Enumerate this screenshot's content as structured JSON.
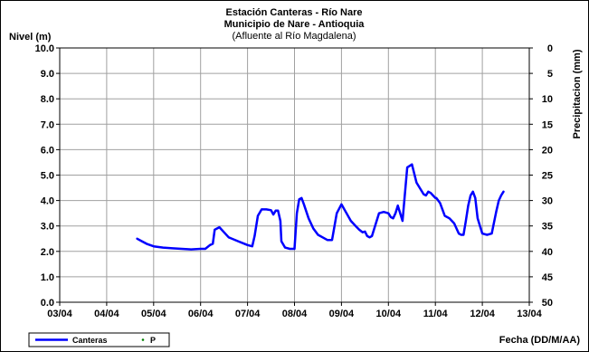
{
  "chart_data": {
    "type": "line",
    "title": [
      "Estación Canteras - Río Nare",
      "Municipio de Nare - Antioquia"
    ],
    "subtitle": "(Afluente al Río Magdalena)",
    "ylabel_left": "Nivel (m)",
    "ylabel_right": "Precipitacion (mm)",
    "xlabel": "Fecha (DD/M/AA)",
    "y_left_lim": [
      0,
      10
    ],
    "y_right_lim": [
      0,
      50
    ],
    "y_right_inverted": true,
    "y_left_ticks": [
      "0.0",
      "1.0",
      "2.0",
      "3.0",
      "4.0",
      "5.0",
      "6.0",
      "7.0",
      "8.0",
      "9.0",
      "10.0"
    ],
    "y_right_ticks": [
      "0",
      "5",
      "10",
      "15",
      "20",
      "25",
      "30",
      "35",
      "40",
      "45",
      "50"
    ],
    "x_ticks": [
      "03/04",
      "04/04",
      "05/04",
      "06/04",
      "07/04",
      "08/04",
      "09/04",
      "10/04",
      "11/04",
      "12/04",
      "13/04"
    ],
    "grid": true,
    "legend_position": "bottom-left",
    "series": [
      {
        "name": "Canteras",
        "color": "#0000ff",
        "x_month_index": [
          1.65,
          1.75,
          1.85,
          2.0,
          2.2,
          2.4,
          2.6,
          2.8,
          3.0,
          3.1,
          3.2,
          3.26,
          3.3,
          3.4,
          3.5,
          3.6,
          3.8,
          4.0,
          4.1,
          4.15,
          4.22,
          4.3,
          4.4,
          4.5,
          4.55,
          4.6,
          4.65,
          4.7,
          4.72,
          4.8,
          4.9,
          5.0,
          5.05,
          5.1,
          5.15,
          5.2,
          5.3,
          5.4,
          5.5,
          5.6,
          5.7,
          5.8,
          5.9,
          6.0,
          6.2,
          6.3,
          6.38,
          6.45,
          6.5,
          6.55,
          6.6,
          6.65,
          6.7,
          6.8,
          6.9,
          7.0,
          7.05,
          7.1,
          7.15,
          7.2,
          7.3,
          7.4,
          7.5,
          7.6,
          7.7,
          7.75,
          7.8,
          7.85,
          7.9,
          7.95,
          8.0,
          8.02,
          8.1,
          8.2,
          8.3,
          8.4,
          8.5,
          8.55,
          8.6,
          8.65,
          8.7,
          8.75,
          8.8,
          8.85,
          8.9,
          8.95,
          9.0,
          9.1,
          9.2,
          9.3,
          9.35,
          9.4,
          9.45
        ],
        "values": [
          2.5,
          2.4,
          2.3,
          2.2,
          2.15,
          2.12,
          2.1,
          2.08,
          2.1,
          2.1,
          2.25,
          2.3,
          2.85,
          2.95,
          2.75,
          2.55,
          2.4,
          2.25,
          2.2,
          2.6,
          3.4,
          3.65,
          3.65,
          3.62,
          3.45,
          3.6,
          3.6,
          3.2,
          2.4,
          2.15,
          2.1,
          2.1,
          3.5,
          4.05,
          4.1,
          3.85,
          3.3,
          2.9,
          2.65,
          2.55,
          2.45,
          2.45,
          3.5,
          3.85,
          3.2,
          3.0,
          2.85,
          2.75,
          2.78,
          2.6,
          2.55,
          2.6,
          2.9,
          3.5,
          3.55,
          3.5,
          3.35,
          3.3,
          3.5,
          3.8,
          3.2,
          5.3,
          5.42,
          4.7,
          4.4,
          4.25,
          4.2,
          4.35,
          4.3,
          4.2,
          4.1,
          4.1,
          3.9,
          3.4,
          3.3,
          3.1,
          2.7,
          2.65,
          2.65,
          3.2,
          3.8,
          4.2,
          4.35,
          4.1,
          3.3,
          3.0,
          2.7,
          2.65,
          2.7,
          3.6,
          4.0,
          4.2,
          4.35
        ]
      },
      {
        "name": "P",
        "color": "#008000",
        "values": []
      }
    ]
  }
}
